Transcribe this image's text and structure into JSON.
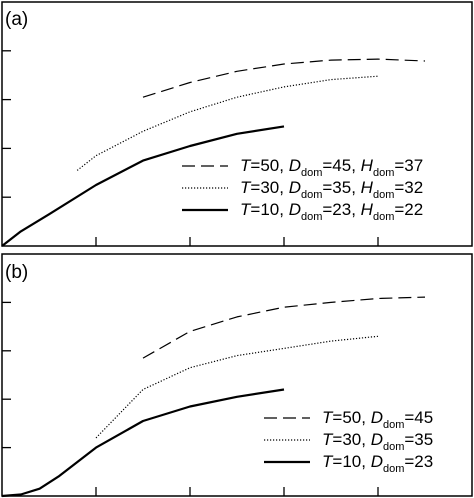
{
  "chart_data": [
    {
      "type": "line",
      "panel_label": "(a)",
      "title": "",
      "xlabel": "",
      "ylabel": "",
      "tick_labels_shown": false,
      "xlim": [
        0,
        50
      ],
      "ylim": [
        0,
        50
      ],
      "legend_placement": "bottom-right",
      "series": [
        {
          "name": "T=50, Ddom=45, Hdom=37",
          "legend": {
            "T": "T",
            "T_val": "50",
            "D": "D",
            "D_sub": "dom",
            "D_val": "45",
            "H": "H",
            "H_sub": "dom",
            "H_val": "37"
          },
          "style": "dashed",
          "x": [
            15,
            20,
            25,
            30,
            35,
            40,
            45
          ],
          "y": [
            30.5,
            33.5,
            35.8,
            37.3,
            38.1,
            38.3,
            37.9
          ]
        },
        {
          "name": "T=30, Ddom=35, Hdom=32",
          "legend": {
            "T": "T",
            "T_val": "30",
            "D": "D",
            "D_sub": "dom",
            "D_val": "35",
            "H": "H",
            "H_sub": "dom",
            "H_val": "32"
          },
          "style": "dotted",
          "x": [
            8,
            10,
            15,
            20,
            25,
            30,
            35,
            40
          ],
          "y": [
            15.5,
            18.5,
            23.5,
            27.5,
            30.5,
            32.6,
            34.1,
            34.8
          ]
        },
        {
          "name": "T=10, Ddom=23, Hdom=22",
          "legend": {
            "T": "T",
            "T_val": "10",
            "D": "D",
            "D_sub": "dom",
            "D_val": "23",
            "H": "H",
            "H_sub": "dom",
            "H_val": "22"
          },
          "style": "solid",
          "x": [
            0,
            2,
            5,
            10,
            15,
            20,
            25,
            30
          ],
          "y": [
            0,
            3,
            6.5,
            12.5,
            17.5,
            20.5,
            23,
            24.5
          ]
        }
      ]
    },
    {
      "type": "line",
      "panel_label": "(b)",
      "title": "",
      "xlabel": "",
      "ylabel": "",
      "tick_labels_shown": false,
      "xlim": [
        0,
        50
      ],
      "ylim": [
        0,
        50
      ],
      "legend_placement": "bottom-right",
      "series": [
        {
          "name": "T=50, Ddom=45",
          "legend": {
            "T": "T",
            "T_val": "50",
            "D": "D",
            "D_sub": "dom",
            "D_val": "45"
          },
          "style": "dashed",
          "x": [
            15,
            20,
            25,
            30,
            35,
            40,
            45
          ],
          "y": [
            28.5,
            34,
            37,
            39,
            40,
            40.8,
            41.1
          ]
        },
        {
          "name": "T=30, Ddom=35",
          "legend": {
            "T": "T",
            "T_val": "30",
            "D": "D",
            "D_sub": "dom",
            "D_val": "35"
          },
          "style": "dotted",
          "x": [
            10,
            15,
            20,
            25,
            30,
            35,
            40
          ],
          "y": [
            12,
            22,
            26.5,
            29,
            30.5,
            32,
            33
          ]
        },
        {
          "name": "T=10, Ddom=23",
          "legend": {
            "T": "T",
            "T_val": "10",
            "D": "D",
            "D_sub": "dom",
            "D_val": "23"
          },
          "style": "solid",
          "x": [
            0,
            2,
            4,
            6,
            8,
            10,
            15,
            20,
            25,
            30
          ],
          "y": [
            0,
            0.3,
            1.5,
            4,
            7,
            10,
            15.5,
            18.5,
            20.5,
            22
          ]
        }
      ]
    }
  ]
}
